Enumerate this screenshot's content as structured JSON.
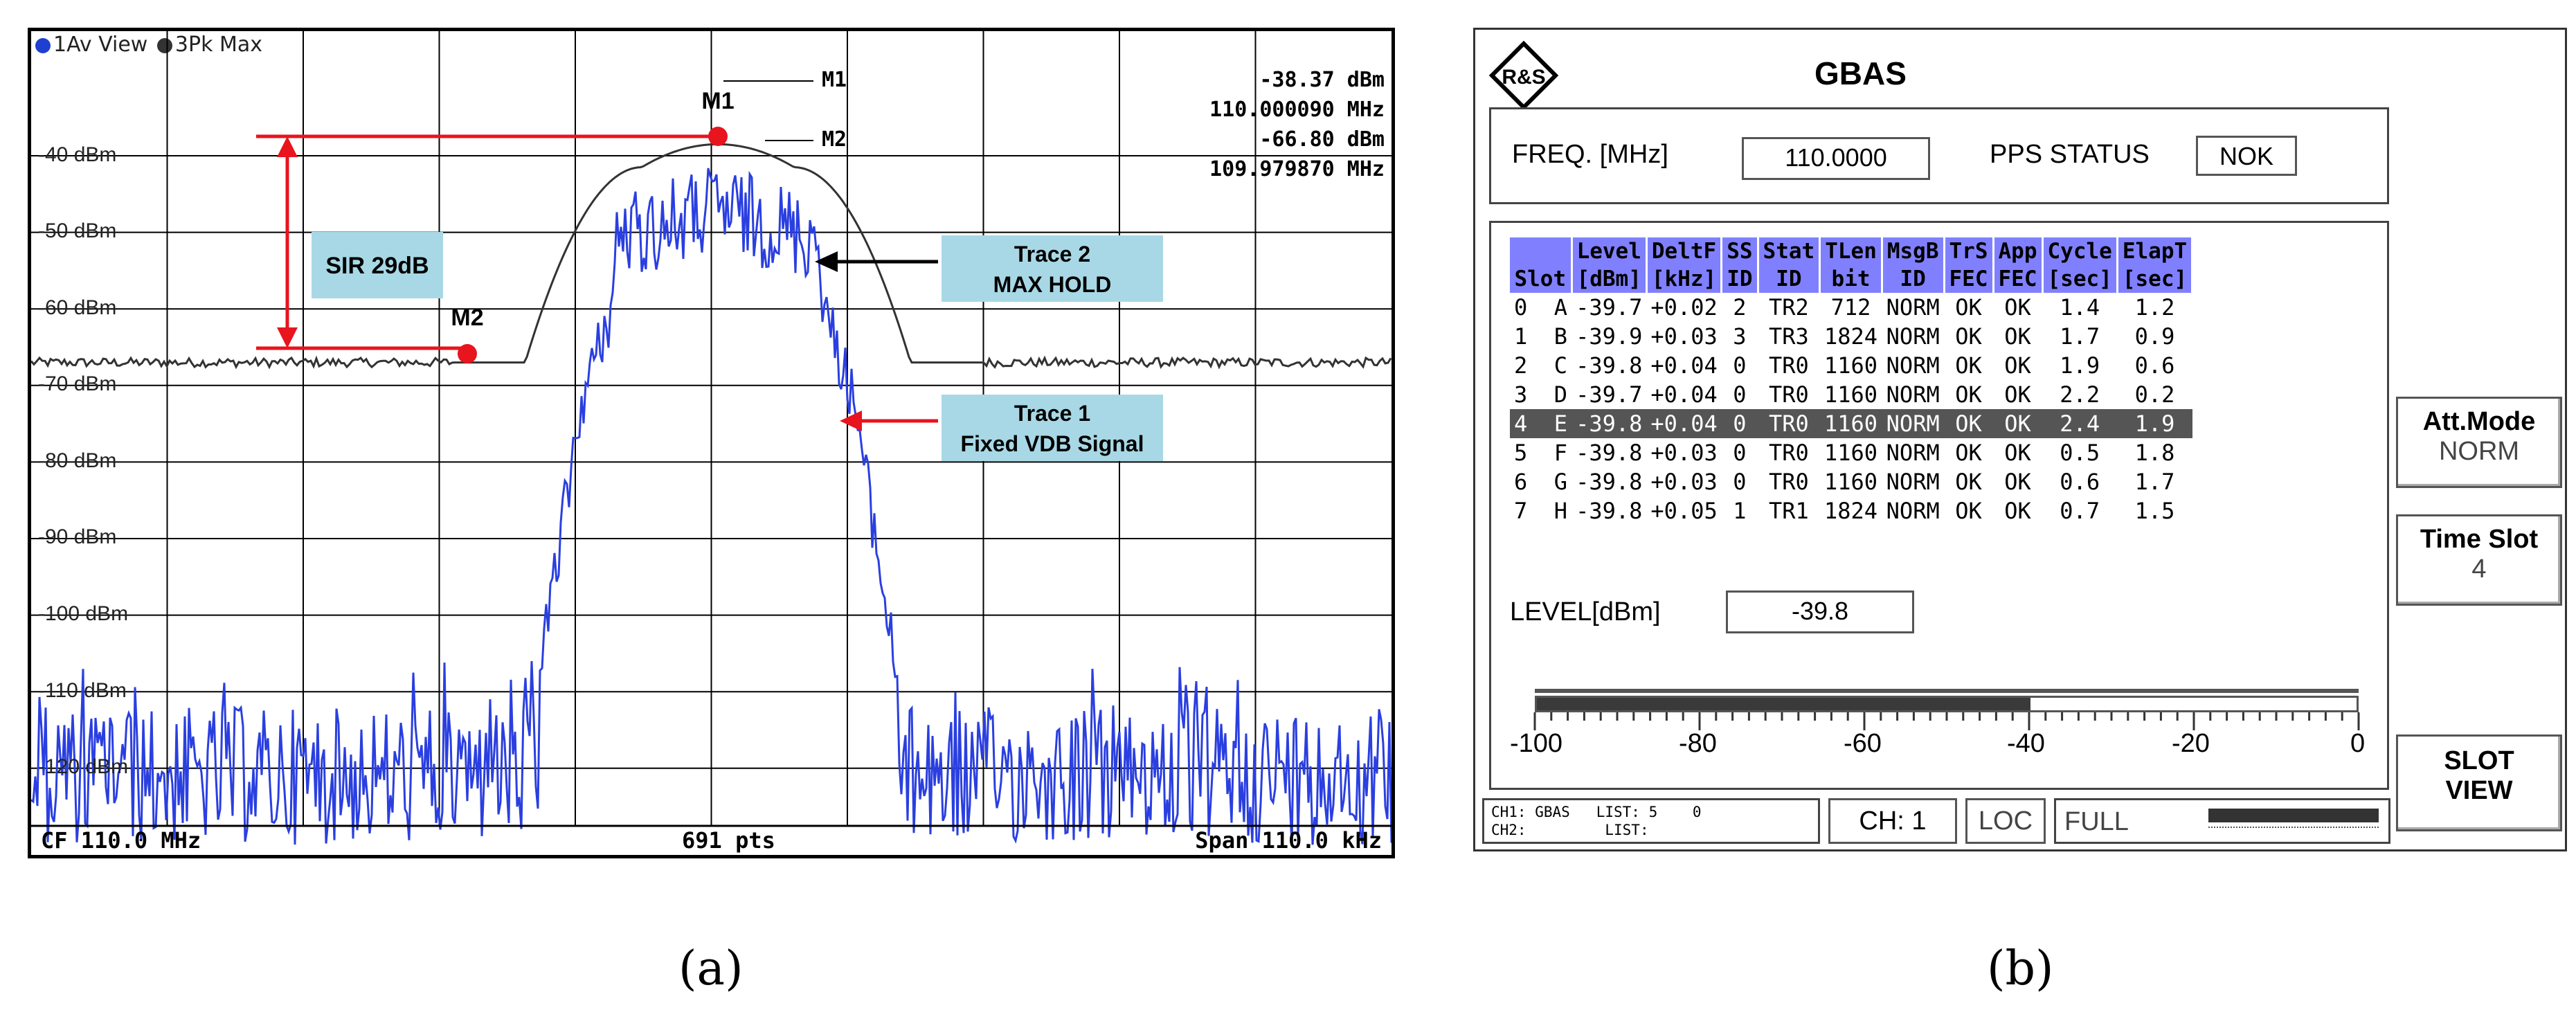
{
  "panel_a": {
    "header": {
      "trace1": "1Av View",
      "trace2": "3Pk Max",
      "trace1_color": "#1f3fd0",
      "trace2_color": "#333333"
    },
    "marker_readout": {
      "m1_tag": "M1",
      "m2_tag": "M2",
      "m1_level": "-38.37 dBm",
      "m1_freq": "110.000090 MHz",
      "m2_level": "-66.80 dBm",
      "m2_freq": "109.979870 MHz"
    },
    "y_ticks": [
      "-40 dBm",
      "-50 dBm",
      "-60 dBm",
      "-70 dBm",
      "-80 dBm",
      "-90 dBm",
      "-100 dBm",
      "-110 dBm",
      "-120 dBm"
    ],
    "marker_labels": {
      "m1": "M1",
      "m2": "M2"
    },
    "sir_label": "SIR 29dB",
    "trace2_label": [
      "Trace 2",
      "MAX HOLD"
    ],
    "trace1_label": [
      "Trace 1",
      "Fixed VDB Signal"
    ],
    "footer": {
      "left": "CF 110.0 MHz",
      "center": "691 pts",
      "right": "Span 110.0 kHz"
    },
    "colors": {
      "trace1": "#2a3fe0",
      "trace2": "#333333",
      "annotation": "#e8141e",
      "callout_bg": "#a8d8e6"
    }
  },
  "panel_b": {
    "title": "GBAS",
    "logo": "R&S",
    "freq_label": "FREQ. [MHz]",
    "freq_value": "110.0000",
    "pps_label": "PPS STATUS",
    "pps_value": "NOK",
    "table": {
      "headers_top": [
        "",
        "Level",
        "DeltF",
        "SS",
        "Stat",
        "TLen",
        "MsgB",
        "TrS",
        "App",
        "Cycle",
        "ElapT"
      ],
      "headers_bottom": [
        "Slot",
        "[dBm]",
        "[kHz]",
        "ID",
        "ID",
        "bit",
        "ID",
        "FEC",
        "FEC",
        "[sec]",
        "[sec]"
      ],
      "rows": [
        [
          "0  A",
          "-39.7",
          "+0.02",
          "2",
          "TR2",
          "712",
          "NORM",
          "OK",
          "OK",
          "1.4",
          "1.2"
        ],
        [
          "1  B",
          "-39.9",
          "+0.03",
          "3",
          "TR3",
          "1824",
          "NORM",
          "OK",
          "OK",
          "1.7",
          "0.9"
        ],
        [
          "2  C",
          "-39.8",
          "+0.04",
          "0",
          "TR0",
          "1160",
          "NORM",
          "OK",
          "OK",
          "1.9",
          "0.6"
        ],
        [
          "3  D",
          "-39.7",
          "+0.04",
          "0",
          "TR0",
          "1160",
          "NORM",
          "OK",
          "OK",
          "2.2",
          "0.2"
        ],
        [
          "4  E",
          "-39.8",
          "+0.04",
          "0",
          "TR0",
          "1160",
          "NORM",
          "OK",
          "OK",
          "2.4",
          "1.9"
        ],
        [
          "5  F",
          "-39.8",
          "+0.03",
          "0",
          "TR0",
          "1160",
          "NORM",
          "OK",
          "OK",
          "0.5",
          "1.8"
        ],
        [
          "6  G",
          "-39.8",
          "+0.03",
          "0",
          "TR0",
          "1160",
          "NORM",
          "OK",
          "OK",
          "0.6",
          "1.7"
        ],
        [
          "7  H",
          "-39.8",
          "+0.05",
          "1",
          "TR1",
          "1824",
          "NORM",
          "OK",
          "OK",
          "0.7",
          "1.5"
        ]
      ],
      "highlight_row": 4
    },
    "level_label": "LEVEL[dBm]",
    "level_value": "-39.8",
    "bar": {
      "ticks": [
        "-100",
        "-80",
        "-60",
        "-40",
        "-20",
        "0"
      ],
      "level_fraction": 0.602
    },
    "status": {
      "ch1": "CH1: GBAS",
      "list1": "LIST: 5",
      "zero": "0",
      "ch2": "CH2:",
      "list2": "LIST:",
      "ch": "CH: 1",
      "loc": "LOC",
      "full": "FULL"
    },
    "softkeys": {
      "att_mode_label": "Att.Mode",
      "att_mode_value": "NORM",
      "time_slot_label": "Time Slot",
      "time_slot_value": "4",
      "slot_view_line1": "SLOT",
      "slot_view_line2": "VIEW"
    }
  },
  "captions": {
    "a": "(a)",
    "b": "(b)"
  }
}
